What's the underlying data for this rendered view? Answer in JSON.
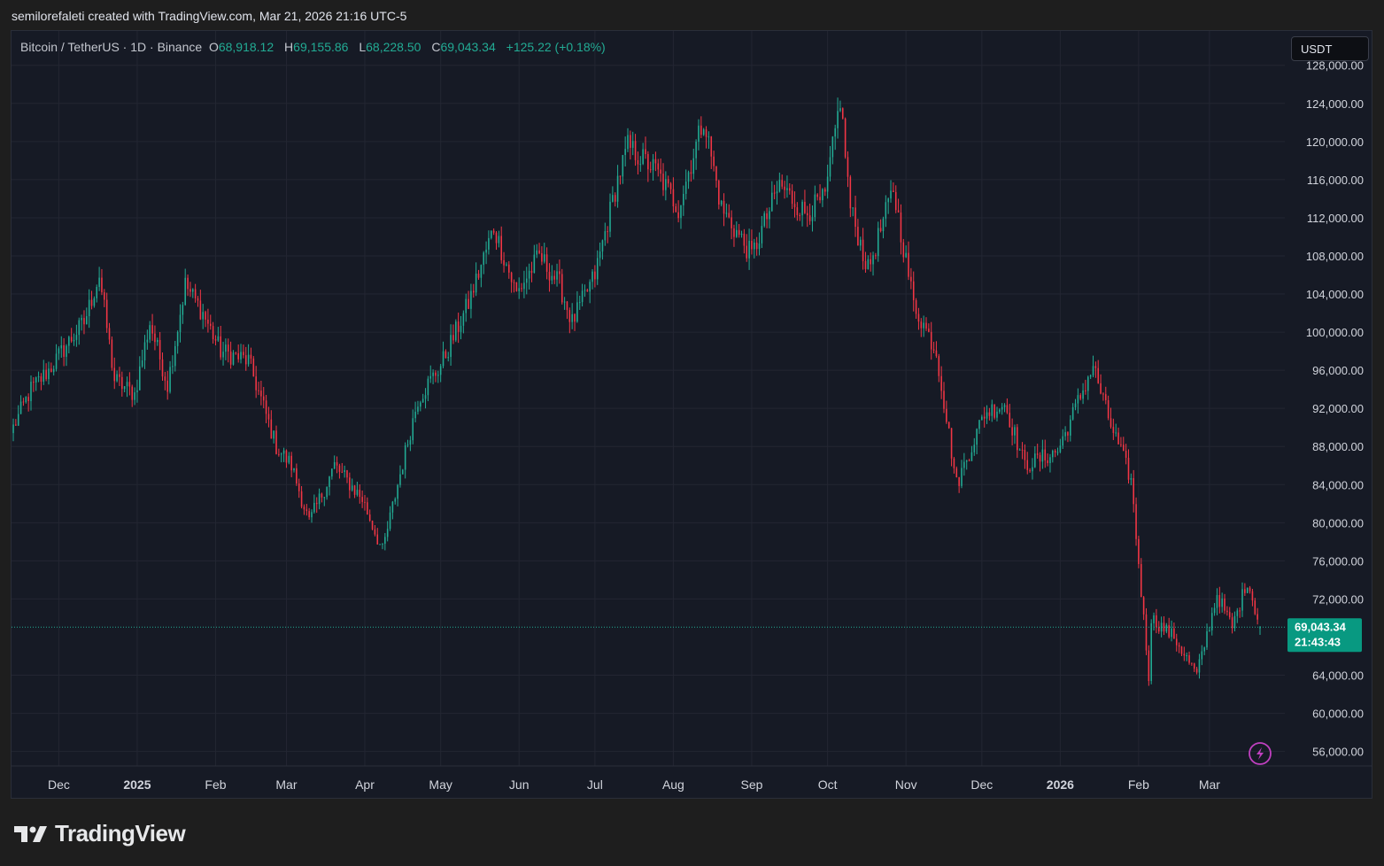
{
  "header": {
    "attribution": "semilorefaleti created with TradingView.com, Mar 21, 2026 21:16 UTC-5"
  },
  "legend": {
    "symbol": "Bitcoin / TetherUS · 1D · Binance",
    "open_label": "O",
    "open": "68,918.12",
    "high_label": "H",
    "high": "69,155.86",
    "low_label": "L",
    "low": "68,228.50",
    "close_label": "C",
    "close": "69,043.34",
    "change": "+125.22 (+0.18%)"
  },
  "currency_button": {
    "label": "USDT"
  },
  "price_tag": {
    "price": "69,043.34",
    "countdown": "21:43:43"
  },
  "footer": {
    "brand": "TradingView"
  },
  "colors": {
    "up": "#22ab94",
    "down": "#f23645",
    "background": "#161a25",
    "grid": "#232632",
    "axis_text": "#d1d4dc",
    "price_tag": "#089981",
    "lightning": "#c040c0"
  },
  "icons": {
    "lightning": "lightning-icon",
    "logo": "tradingview-logo-icon"
  },
  "chart_data": {
    "type": "candlestick",
    "title": "Bitcoin / TetherUS · 1D · Binance",
    "y_ticks": [
      128000,
      124000,
      120000,
      116000,
      112000,
      108000,
      104000,
      100000,
      96000,
      92000,
      88000,
      84000,
      80000,
      76000,
      72000,
      64000,
      60000,
      56000
    ],
    "y_tick_labels": [
      "128,000.00",
      "124,000.00",
      "120,000.00",
      "116,000.00",
      "112,000.00",
      "108,000.00",
      "104,000.00",
      "100,000.00",
      "96,000.00",
      "92,000.00",
      "88,000.00",
      "84,000.00",
      "80,000.00",
      "76,000.00",
      "72,000.00",
      "64,000.00",
      "60,000.00",
      "56,000.00"
    ],
    "ylim": [
      54000,
      131000
    ],
    "x_ticks": [
      "Dec",
      "2025",
      "Feb",
      "Mar",
      "Apr",
      "May",
      "Jun",
      "Jul",
      "Aug",
      "Sep",
      "Oct",
      "Nov",
      "Dec",
      "2026",
      "Feb",
      "Mar"
    ],
    "x_tick_bold": [
      false,
      true,
      false,
      false,
      false,
      false,
      false,
      false,
      false,
      false,
      false,
      false,
      false,
      true,
      false,
      false
    ],
    "date_range": [
      "2024-11-13",
      "2026-03-21"
    ],
    "last_price": 69043.34,
    "grid": true,
    "series": [
      {
        "anchors_close": [
          [
            "2024-11-13",
            90000
          ],
          [
            "2024-11-20",
            94000
          ],
          [
            "2024-11-27",
            96000
          ],
          [
            "2024-12-05",
            99000
          ],
          [
            "2024-12-11",
            101000
          ],
          [
            "2024-12-17",
            106000
          ],
          [
            "2024-12-23",
            95000
          ],
          [
            "2024-12-31",
            93500
          ],
          [
            "2025-01-06",
            101000
          ],
          [
            "2025-01-13",
            94500
          ],
          [
            "2025-01-20",
            105000
          ],
          [
            "2025-01-27",
            102000
          ],
          [
            "2025-02-03",
            98000
          ],
          [
            "2025-02-14",
            97000
          ],
          [
            "2025-02-25",
            88000
          ],
          [
            "2025-03-03",
            86000
          ],
          [
            "2025-03-10",
            80000
          ],
          [
            "2025-03-20",
            86000
          ],
          [
            "2025-03-31",
            82500
          ],
          [
            "2025-04-08",
            77000
          ],
          [
            "2025-04-14",
            84000
          ],
          [
            "2025-04-22",
            93000
          ],
          [
            "2025-05-01",
            96500
          ],
          [
            "2025-05-12",
            103000
          ],
          [
            "2025-05-22",
            111000
          ],
          [
            "2025-05-31",
            104000
          ],
          [
            "2025-06-09",
            108000
          ],
          [
            "2025-06-17",
            105000
          ],
          [
            "2025-06-22",
            101000
          ],
          [
            "2025-07-01",
            106000
          ],
          [
            "2025-07-10",
            116000
          ],
          [
            "2025-07-14",
            119500
          ],
          [
            "2025-07-25",
            117000
          ],
          [
            "2025-08-03",
            113000
          ],
          [
            "2025-08-13",
            122500
          ],
          [
            "2025-08-20",
            113000
          ],
          [
            "2025-09-01",
            108000
          ],
          [
            "2025-09-12",
            115500
          ],
          [
            "2025-09-22",
            112500
          ],
          [
            "2025-09-30",
            114000
          ],
          [
            "2025-10-06",
            124500
          ],
          [
            "2025-10-10",
            113000
          ],
          [
            "2025-10-17",
            106500
          ],
          [
            "2025-10-27",
            115000
          ],
          [
            "2025-11-04",
            103000
          ],
          [
            "2025-11-13",
            98000
          ],
          [
            "2025-11-21",
            84000
          ],
          [
            "2025-12-02",
            91500
          ],
          [
            "2025-12-10",
            92500
          ],
          [
            "2025-12-18",
            86000
          ],
          [
            "2025-12-31",
            87500
          ],
          [
            "2026-01-14",
            96500
          ],
          [
            "2026-01-20",
            91000
          ],
          [
            "2026-01-29",
            84500
          ],
          [
            "2026-02-05",
            64000
          ],
          [
            "2026-02-06",
            70000
          ],
          [
            "2026-02-15",
            68000
          ],
          [
            "2026-02-24",
            64000
          ],
          [
            "2026-03-04",
            72500
          ],
          [
            "2026-03-10",
            69000
          ],
          [
            "2026-03-16",
            74000
          ],
          [
            "2026-03-21",
            69043
          ]
        ]
      }
    ]
  }
}
